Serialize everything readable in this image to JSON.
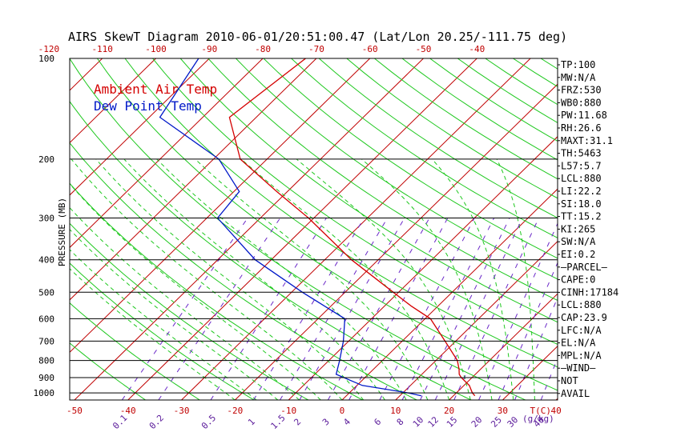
{
  "colors": {
    "temperature": "#d40000",
    "dewpoint": "#0018c8",
    "isotherm": "#c00000",
    "dry_adiabat": "#1ec81e",
    "moist_adiabat": "#1ec81e",
    "mixing_ratio": "#6a28c8",
    "label_red": "#c00000",
    "label_purple": "#5a1a9a",
    "axis": "#000000"
  },
  "chart_data": {
    "type": "line",
    "title": "AIRS SkewT Diagram 2010-06-01/20:51:00.47 (Lat/Lon 20.25/-111.75 deg)",
    "ylabel": "PRESSURE (MB)",
    "xlabel": "T(C)",
    "mixing_ratio_unit": "(g/kg)",
    "pressure_ticks": [
      100,
      200,
      300,
      400,
      500,
      600,
      700,
      800,
      900,
      1000
    ],
    "top_temp_ticks": [
      -120,
      -110,
      -100,
      -90,
      -80,
      -70,
      -60,
      -50,
      -40
    ],
    "bottom_temp_ticks": [
      -50,
      -40,
      -30,
      -20,
      -10,
      0,
      10,
      20,
      30,
      40
    ],
    "mixing_ratio_ticks": [
      "0.1",
      "0.2",
      "0.5",
      "1",
      "1.5",
      "2",
      "3",
      "4",
      "6",
      "8",
      "10",
      "12",
      "15",
      "20",
      "25",
      "30",
      "40"
    ],
    "legend": [
      {
        "label": "Ambient Air Temp",
        "color": "#d40000"
      },
      {
        "label": "Dew Point Temp",
        "color": "#0018c8"
      }
    ],
    "series": [
      {
        "name": "Ambient Air Temp",
        "points": [
          {
            "p": 100,
            "t": -72
          },
          {
            "p": 150,
            "t": -75
          },
          {
            "p": 200,
            "t": -65
          },
          {
            "p": 250,
            "t": -52
          },
          {
            "p": 300,
            "t": -41
          },
          {
            "p": 400,
            "t": -25
          },
          {
            "p": 500,
            "t": -11
          },
          {
            "p": 550,
            "t": -5
          },
          {
            "p": 600,
            "t": 1
          },
          {
            "p": 700,
            "t": 8
          },
          {
            "p": 800,
            "t": 14
          },
          {
            "p": 850,
            "t": 16
          },
          {
            "p": 880,
            "t": 17
          },
          {
            "p": 900,
            "t": 18
          },
          {
            "p": 950,
            "t": 21
          },
          {
            "p": 1000,
            "t": 23
          },
          {
            "p": 1020,
            "t": 24
          }
        ]
      },
      {
        "name": "Dew Point Temp",
        "points": [
          {
            "p": 100,
            "t": -92
          },
          {
            "p": 150,
            "t": -88
          },
          {
            "p": 200,
            "t": -69
          },
          {
            "p": 250,
            "t": -59
          },
          {
            "p": 300,
            "t": -58
          },
          {
            "p": 400,
            "t": -43
          },
          {
            "p": 500,
            "t": -28
          },
          {
            "p": 600,
            "t": -15
          },
          {
            "p": 700,
            "t": -11
          },
          {
            "p": 800,
            "t": -8
          },
          {
            "p": 880,
            "t": -6
          },
          {
            "p": 950,
            "t": 1
          },
          {
            "p": 1000,
            "t": 11
          },
          {
            "p": 1020,
            "t": 14
          }
        ]
      }
    ],
    "indices": [
      "TP:100",
      "MW:N/A",
      "FRZ:530",
      "WB0:880",
      "PW:11.68",
      "RH:26.6",
      "MAXT:31.1",
      "TH:5463",
      "L57:5.7",
      "LCL:880",
      "LI:22.2",
      "SI:18.0",
      "TT:15.2",
      "KI:265",
      "SW:N/A",
      "EI:0.2",
      "—PARCEL—",
      "CAPE:0",
      "CINH:17184",
      "LCL:880",
      "CAP:23.9",
      "LFC:N/A",
      "EL:N/A",
      "MPL:N/A",
      "—WIND—",
      "NOT",
      "AVAIL"
    ]
  }
}
